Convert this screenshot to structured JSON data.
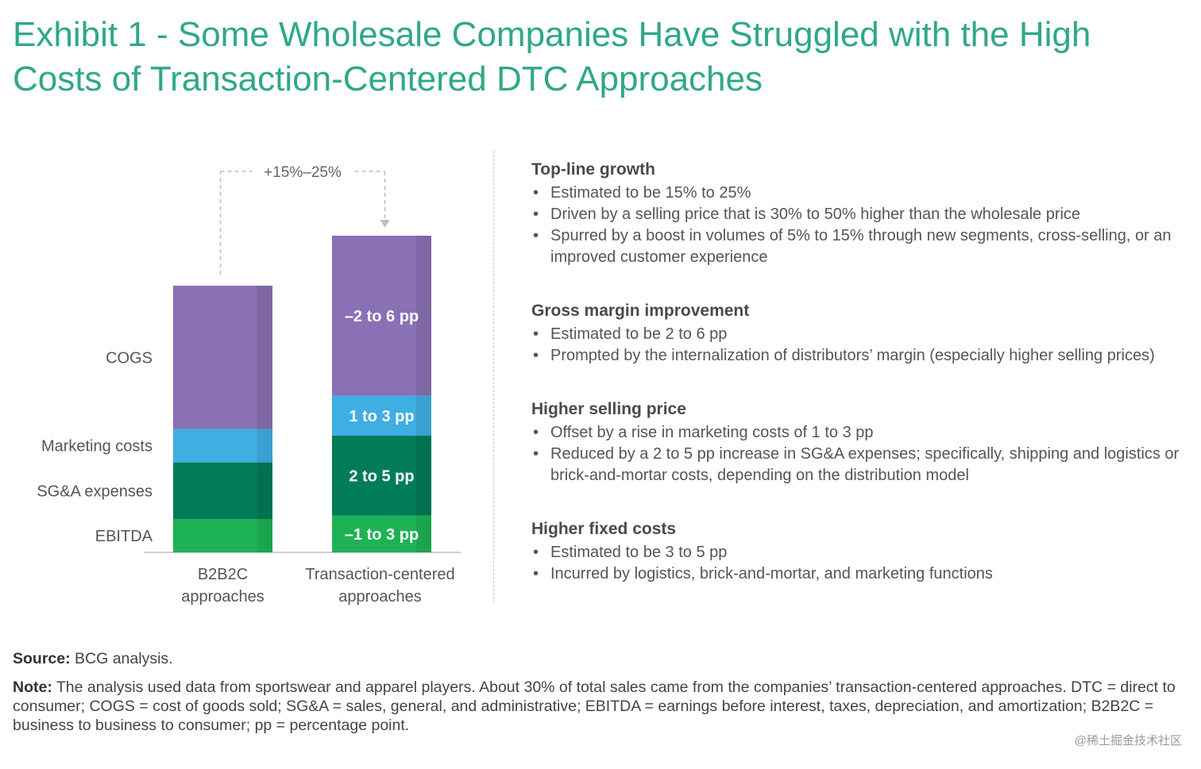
{
  "title": "Exhibit 1 - Some Wholesale Companies Have Struggled with the High Costs of Transaction-Centered DTC Approaches",
  "colors": {
    "title": "#2fa889",
    "cogs": "#8a70b4",
    "marketing": "#3eaee3",
    "sga": "#007c57",
    "ebitda": "#1db354",
    "connector": "#bdbdbd"
  },
  "chart_data": {
    "type": "bar",
    "stacked": true,
    "categories": [
      "B2B2C approaches",
      "Transaction-centered approaches"
    ],
    "category_lines": [
      [
        "B2B2C",
        "approaches"
      ],
      [
        "Transaction-centered",
        "approaches"
      ]
    ],
    "series": [
      {
        "name": "EBITDA",
        "key": "ebitda",
        "values": [
          10,
          11
        ],
        "label": "EBITDA",
        "delta_label": "–1 to 3 pp"
      },
      {
        "name": "SG&A expenses",
        "key": "sga",
        "values": [
          17,
          24
        ],
        "label": "SG&A expenses",
        "delta_label": "2 to 5 pp"
      },
      {
        "name": "Marketing costs",
        "key": "marketing",
        "values": [
          10,
          12
        ],
        "label": "Marketing costs",
        "delta_label": "1 to 3 pp"
      },
      {
        "name": "COGS",
        "key": "cogs",
        "values": [
          43,
          48
        ],
        "label": "COGS",
        "delta_label": "–2 to 6 pp"
      }
    ],
    "growth_annotation": "+15%–25%",
    "ylim": [
      0,
      100
    ]
  },
  "panel": {
    "sections": [
      {
        "heading": "Top-line growth",
        "bullets": [
          "Estimated to be 15% to 25%",
          "Driven by a selling price that is 30% to 50% higher than the wholesale price",
          "Spurred by a boost in volumes of 5% to 15% through new segments, cross-selling, or an improved customer experience"
        ]
      },
      {
        "heading": "Gross margin improvement",
        "bullets": [
          "Estimated to be 2 to 6 pp",
          "Prompted by the internalization of distributors’ margin (especially higher selling prices)"
        ]
      },
      {
        "heading": "Higher selling price",
        "bullets": [
          "Offset by a rise in marketing costs of 1 to 3 pp",
          "Reduced by a 2 to 5 pp increase in SG&A expenses; specifically, shipping and logistics or brick-and-mortar costs, depending on the distribution model"
        ]
      },
      {
        "heading": "Higher fixed costs",
        "bullets": [
          "Estimated to be 3 to 5 pp",
          "Incurred by logistics, brick-and-mortar, and marketing functions"
        ]
      }
    ]
  },
  "footer": {
    "source_label": "Source:",
    "source_text": " BCG analysis.",
    "note_label": "Note:",
    "note_text": " The analysis used data from sportswear and apparel players. About 30% of total sales came from the companies’ transaction-centered approaches. DTC = direct to consumer; COGS = cost of goods sold; SG&A = sales, general, and administrative; EBITDA = earnings before interest, taxes, depreciation, and amortization; B2B2C = business to business to consumer; pp = percentage point."
  },
  "watermark": "@稀土掘金技术社区"
}
